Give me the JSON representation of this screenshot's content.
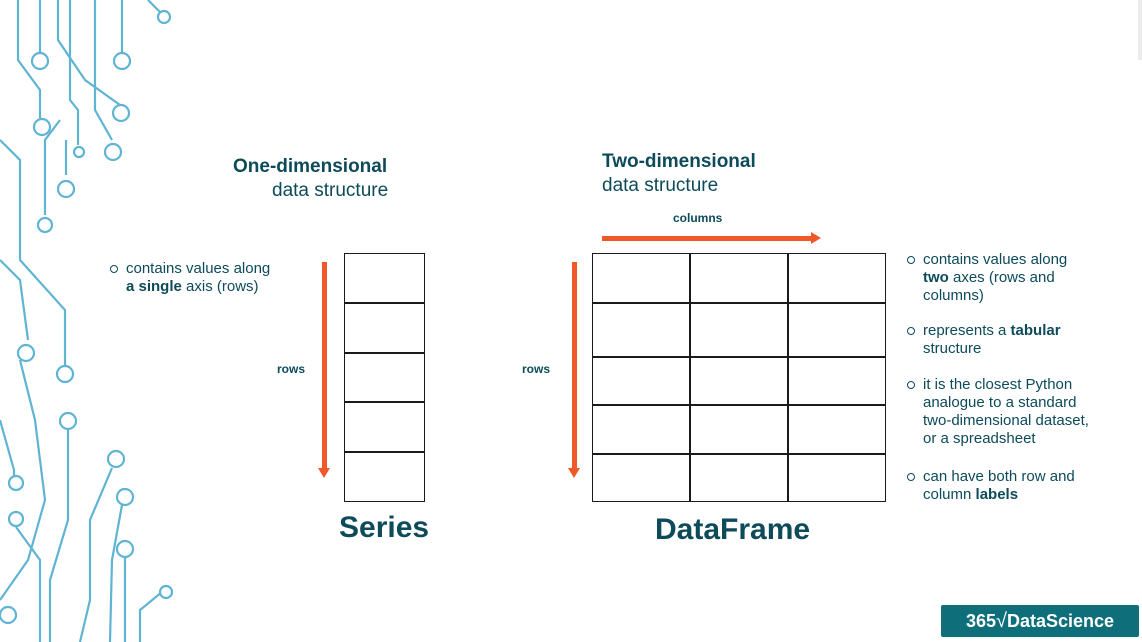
{
  "series_side": {
    "heading_bold": "One-dimensional",
    "heading_rest": "data structure",
    "bullet_line1": "contains values along",
    "bullet_bold": "a single",
    "bullet_rest": " axis (rows)",
    "rows_label": "rows",
    "title": "Series",
    "cell_count": 5
  },
  "dataframe_side": {
    "heading_bold": "Two-dimensional",
    "heading_rest": "data structure",
    "columns_label": "columns",
    "rows_label": "rows",
    "title": "DataFrame",
    "grid_rows": 5,
    "grid_cols": 3
  },
  "bullets": {
    "b1_line1": "contains values along",
    "b1_bold": "two",
    "b1_rest": " axes (rows and",
    "b1_line3": "columns)",
    "b2_pre": "represents a ",
    "b2_bold": "tabular",
    "b2_line2": "structure",
    "b3_line1": "it is the closest Python",
    "b3_line2": "analogue to a standard",
    "b3_line3": "two-dimensional dataset,",
    "b3_line4": "or a spreadsheet",
    "b4_line1": "can have both row and",
    "b4_pre": "column ",
    "b4_bold": "labels"
  },
  "logo": {
    "part1": "365",
    "sqrt": "√",
    "part2": "DataScience"
  },
  "colors": {
    "accent": "#f0582a",
    "text": "#0d4a5a",
    "circuit": "#5fb4d4",
    "logo_bg": "#0e6e7a"
  }
}
